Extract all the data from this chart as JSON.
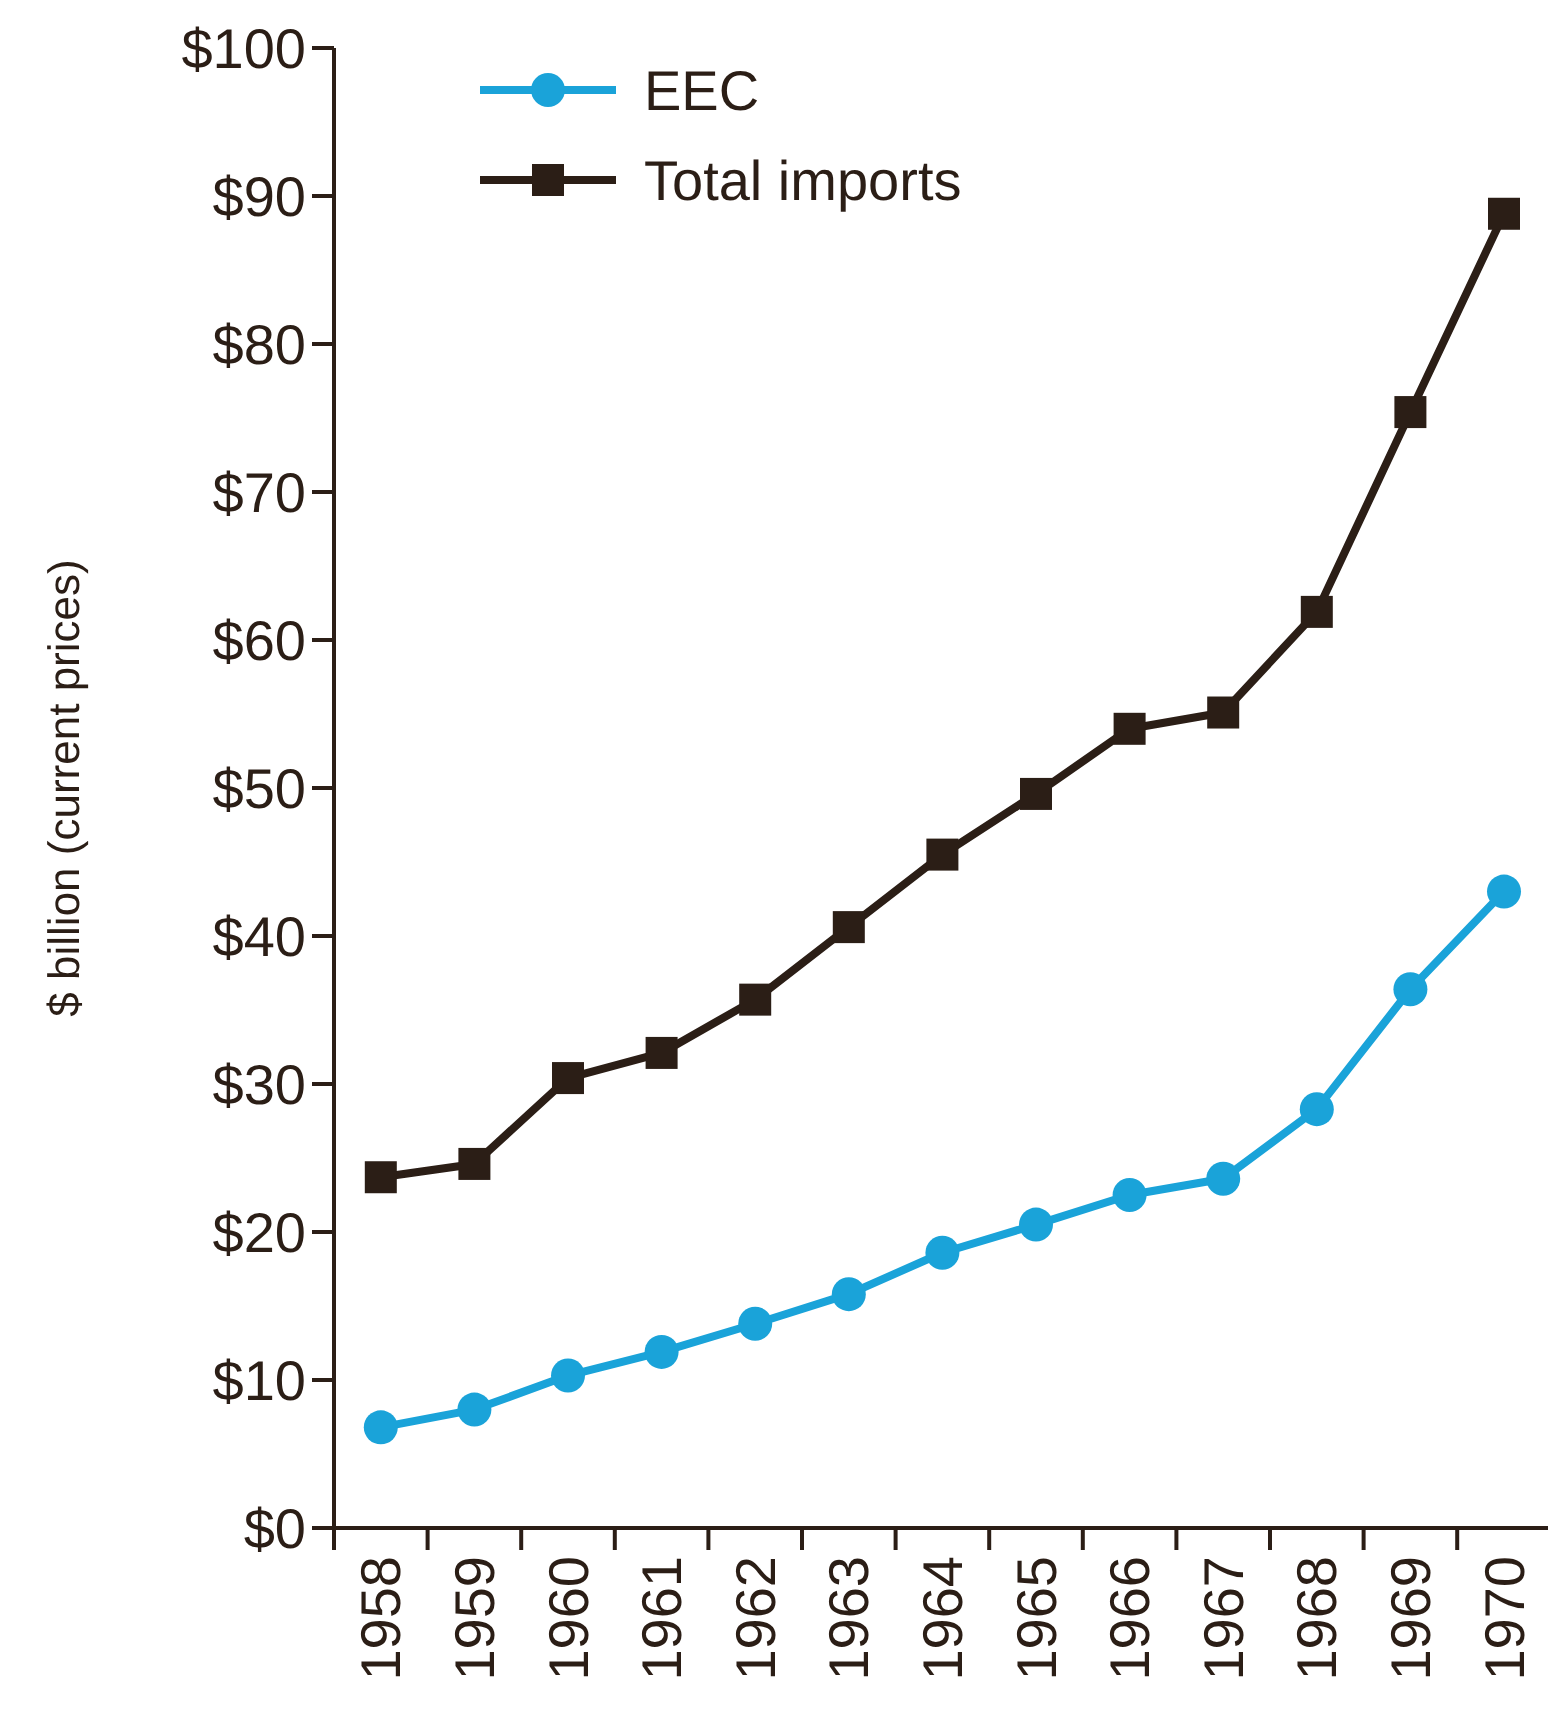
{
  "chart_data": {
    "type": "line",
    "ylabel": "$ billion (current prices)",
    "categories": [
      "1958",
      "1959",
      "1960",
      "1961",
      "1962",
      "1963",
      "1964",
      "1965",
      "1966",
      "1967",
      "1968",
      "1969",
      "1970"
    ],
    "series": [
      {
        "name": "EEC",
        "color": "#1aa3d9",
        "marker": "circle",
        "values": [
          6.8,
          8.0,
          10.3,
          11.9,
          13.8,
          15.8,
          18.6,
          20.5,
          22.5,
          23.6,
          28.3,
          36.4,
          43.0
        ]
      },
      {
        "name": "Total imports",
        "color": "#2b1e16",
        "marker": "square",
        "values": [
          23.7,
          24.6,
          30.4,
          32.1,
          35.7,
          40.6,
          45.5,
          49.6,
          54.0,
          55.1,
          61.9,
          75.4,
          88.8
        ]
      }
    ],
    "ylim": [
      0,
      100
    ],
    "yticks": [
      {
        "value": 0,
        "label": "$0"
      },
      {
        "value": 10,
        "label": "$10"
      },
      {
        "value": 20,
        "label": "$20"
      },
      {
        "value": 30,
        "label": "$30"
      },
      {
        "value": 40,
        "label": "$40"
      },
      {
        "value": 50,
        "label": "$50"
      },
      {
        "value": 60,
        "label": "$60"
      },
      {
        "value": 70,
        "label": "$70"
      },
      {
        "value": 80,
        "label": "$80"
      },
      {
        "value": 90,
        "label": "$90"
      },
      {
        "value": 100,
        "label": "$100"
      }
    ],
    "grid": false,
    "legend": "top left"
  }
}
